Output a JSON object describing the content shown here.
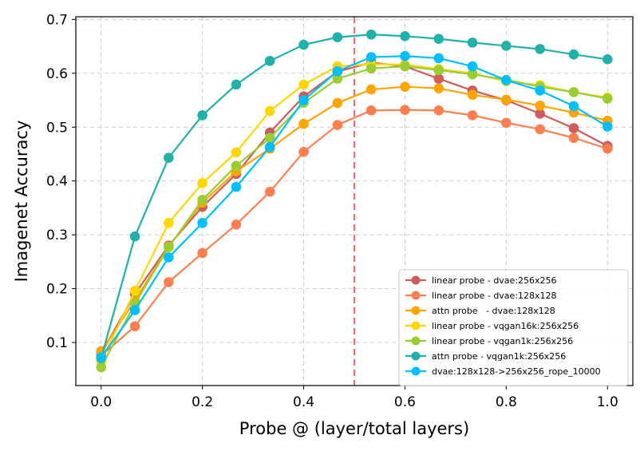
{
  "chart_data": {
    "type": "line",
    "title": "",
    "xlabel": "Probe @ (layer/total layers)",
    "ylabel": "Imagenet Accuracy",
    "xlim": [
      -0.05,
      1.05
    ],
    "ylim": [
      0.02,
      0.705
    ],
    "grid": true,
    "legend_position": "lower-right",
    "x_ticks": [
      0.0,
      0.2,
      0.4,
      0.6,
      0.8,
      1.0
    ],
    "x_tick_labels": [
      "0.0",
      "0.2",
      "0.4",
      "0.6",
      "0.8",
      "1.0"
    ],
    "y_ticks": [
      0.1,
      0.2,
      0.3,
      0.4,
      0.5,
      0.6,
      0.7
    ],
    "y_tick_labels": [
      "0.1",
      "0.2",
      "0.3",
      "0.4",
      "0.5",
      "0.6",
      "0.7"
    ],
    "vline": {
      "x": 0.5,
      "color": "#f07070",
      "style": "dashed"
    },
    "x": [
      0.0,
      0.0667,
      0.1333,
      0.2,
      0.2667,
      0.3333,
      0.4,
      0.4667,
      0.5333,
      0.6,
      0.6667,
      0.7333,
      0.8,
      0.8667,
      0.9333,
      1.0
    ],
    "series": [
      {
        "name": "linear probe - dvae:256x256",
        "color": "#cd5c5c",
        "values": [
          0.08,
          0.19,
          0.28,
          0.352,
          0.413,
          0.49,
          0.557,
          0.603,
          0.62,
          0.613,
          0.59,
          0.568,
          0.55,
          0.525,
          0.498,
          0.465
        ]
      },
      {
        "name": "linear probe - dvae:128x128",
        "color": "#ff7f50",
        "values": [
          0.075,
          0.13,
          0.212,
          0.266,
          0.319,
          0.38,
          0.454,
          0.504,
          0.531,
          0.532,
          0.531,
          0.522,
          0.508,
          0.496,
          0.48,
          0.46
        ]
      },
      {
        "name": "attn probe   - dvae:128x128",
        "color": "#ffa500",
        "values": [
          0.084,
          0.178,
          0.278,
          0.36,
          0.418,
          0.46,
          0.506,
          0.545,
          0.57,
          0.575,
          0.572,
          0.56,
          0.551,
          0.54,
          0.527,
          0.512
        ]
      },
      {
        "name": "linear probe - vqgan16k:256x256",
        "color": "#ffd700",
        "values": [
          0.065,
          0.196,
          0.322,
          0.396,
          0.453,
          0.53,
          0.579,
          0.613,
          0.617,
          0.616,
          0.608,
          0.6,
          0.585,
          0.578,
          0.565,
          0.555
        ]
      },
      {
        "name": "linear probe - vqgan1k:256x256",
        "color": "#9acd32",
        "values": [
          0.054,
          0.172,
          0.277,
          0.365,
          0.428,
          0.48,
          0.545,
          0.59,
          0.609,
          0.613,
          0.606,
          0.598,
          0.588,
          0.575,
          0.565,
          0.553
        ]
      },
      {
        "name": "attn probe - vqgan1k:256x256",
        "color": "#20b2aa",
        "values": [
          0.071,
          0.297,
          0.443,
          0.522,
          0.579,
          0.623,
          0.653,
          0.667,
          0.672,
          0.669,
          0.664,
          0.657,
          0.651,
          0.645,
          0.635,
          0.626
        ]
      },
      {
        "name": "dvae:128x128->256x256_rope_10000",
        "color": "#00bfff",
        "values": [
          0.072,
          0.16,
          0.258,
          0.322,
          0.389,
          0.463,
          0.55,
          0.604,
          0.63,
          0.632,
          0.628,
          0.613,
          0.587,
          0.568,
          0.539,
          0.501
        ]
      }
    ]
  }
}
